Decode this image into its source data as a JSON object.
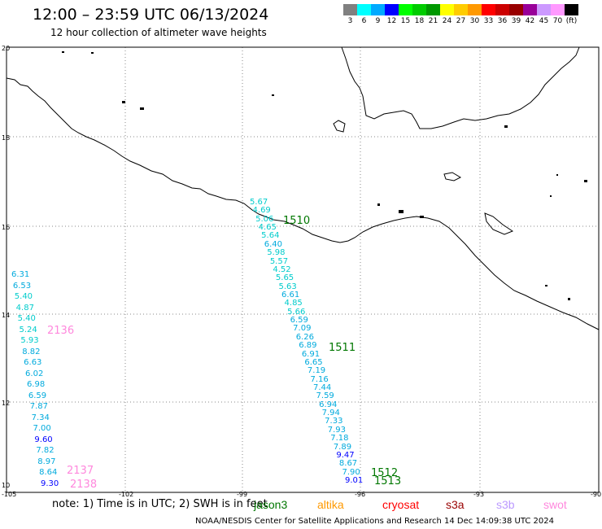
{
  "title": "12:00 – 23:59 UTC 06/13/2024",
  "subtitle": "12 hour collection of altimeter wave heights",
  "colorbar": {
    "colors": [
      "#808080",
      "#00ffff",
      "#00aaff",
      "#0000ff",
      "#00ff00",
      "#00cc00",
      "#009900",
      "#ffff00",
      "#ffcc00",
      "#ff9900",
      "#ff0000",
      "#cc0000",
      "#990000",
      "#990099",
      "#cc99ff",
      "#ff99ff",
      "#000000"
    ],
    "labels": [
      "3",
      "6",
      "9",
      "12",
      "15",
      "18",
      "21",
      "24",
      "27",
      "30",
      "33",
      "36",
      "39",
      "42",
      "45",
      "70",
      "(ft)"
    ]
  },
  "axes": {
    "lon_ticks": [
      "-105",
      "-102",
      "-99",
      "-96",
      "-93",
      "-90"
    ],
    "lat_ticks": [
      "20",
      "18",
      "16",
      "14",
      "12",
      "10"
    ]
  },
  "tracks": [
    {
      "id": "1510",
      "color": "#007700"
    },
    {
      "id": "1511",
      "color": "#007700"
    },
    {
      "id": "1512",
      "color": "#007700"
    },
    {
      "id": "1513",
      "color": "#007700"
    },
    {
      "id": "2136",
      "color": "#ff88dd"
    },
    {
      "id": "2137",
      "color": "#ff88dd"
    },
    {
      "id": "2138",
      "color": "#ff88dd"
    }
  ],
  "track_east_values": [
    {
      "v": "5.67",
      "c": "#00cccc"
    },
    {
      "v": "4.69",
      "c": "#00cccc"
    },
    {
      "v": "5.06",
      "c": "#00cccc"
    },
    {
      "v": "4.65",
      "c": "#00cccc"
    },
    {
      "v": "5.64",
      "c": "#00cccc"
    },
    {
      "v": "6.40",
      "c": "#00aadd"
    },
    {
      "v": "5.98",
      "c": "#00cccc"
    },
    {
      "v": "5.57",
      "c": "#00cccc"
    },
    {
      "v": "4.52",
      "c": "#00cccc"
    },
    {
      "v": "5.65",
      "c": "#00cccc"
    },
    {
      "v": "5.63",
      "c": "#00cccc"
    },
    {
      "v": "6.61",
      "c": "#00aadd"
    },
    {
      "v": "4.85",
      "c": "#00cccc"
    },
    {
      "v": "5.66",
      "c": "#00cccc"
    },
    {
      "v": "6.59",
      "c": "#00aadd"
    },
    {
      "v": "7.09",
      "c": "#00aadd"
    },
    {
      "v": "6.26",
      "c": "#00aadd"
    },
    {
      "v": "6.89",
      "c": "#00aadd"
    },
    {
      "v": "6.91",
      "c": "#00aadd"
    },
    {
      "v": "6.65",
      "c": "#00aadd"
    },
    {
      "v": "7.19",
      "c": "#00aadd"
    },
    {
      "v": "7.16",
      "c": "#00aadd"
    },
    {
      "v": "7.44",
      "c": "#00aadd"
    },
    {
      "v": "7.59",
      "c": "#00aadd"
    },
    {
      "v": "6.94",
      "c": "#00aadd"
    },
    {
      "v": "7.94",
      "c": "#00aadd"
    },
    {
      "v": "7.33",
      "c": "#00aadd"
    },
    {
      "v": "7.93",
      "c": "#00aadd"
    },
    {
      "v": "7.18",
      "c": "#00aadd"
    },
    {
      "v": "7.89",
      "c": "#00aadd"
    },
    {
      "v": "9.47",
      "c": "#0000ff"
    },
    {
      "v": "8.67",
      "c": "#00aadd"
    },
    {
      "v": "7.90",
      "c": "#00aadd"
    },
    {
      "v": "9.01",
      "c": "#0000ff"
    }
  ],
  "track_west_values": [
    {
      "v": "6.31",
      "c": "#00aadd"
    },
    {
      "v": "6.53",
      "c": "#00aadd"
    },
    {
      "v": "5.40",
      "c": "#00cccc"
    },
    {
      "v": "4.87",
      "c": "#00cccc"
    },
    {
      "v": "5.40",
      "c": "#00cccc"
    },
    {
      "v": "5.24",
      "c": "#00cccc"
    },
    {
      "v": "5.93",
      "c": "#00cccc"
    },
    {
      "v": "8.82",
      "c": "#00aadd"
    },
    {
      "v": "6.63",
      "c": "#00aadd"
    },
    {
      "v": "6.02",
      "c": "#00aadd"
    },
    {
      "v": "6.98",
      "c": "#00aadd"
    },
    {
      "v": "6.59",
      "c": "#00aadd"
    },
    {
      "v": "7.87",
      "c": "#00aadd"
    },
    {
      "v": "7.34",
      "c": "#00aadd"
    },
    {
      "v": "7.00",
      "c": "#00aadd"
    },
    {
      "v": "9.60",
      "c": "#0000ff"
    },
    {
      "v": "7.82",
      "c": "#00aadd"
    },
    {
      "v": "8.97",
      "c": "#00aadd"
    },
    {
      "v": "8.64",
      "c": "#00aadd"
    },
    {
      "v": "9.30",
      "c": "#0000ff"
    }
  ],
  "note": "note: 1) Time is in UTC; 2) SWH is in feet",
  "missions": [
    {
      "name": "jason3",
      "color": "#007700"
    },
    {
      "name": "altika",
      "color": "#ff9900"
    },
    {
      "name": "cryosat",
      "color": "#ff0000"
    },
    {
      "name": "s3a",
      "color": "#990000"
    },
    {
      "name": "s3b",
      "color": "#bb99ff"
    },
    {
      "name": "swot",
      "color": "#ff88dd"
    }
  ],
  "credit": "NOAA/NESDIS Center for Satellite Applications and Research     14 Dec 14:09:38 UTC 2024"
}
